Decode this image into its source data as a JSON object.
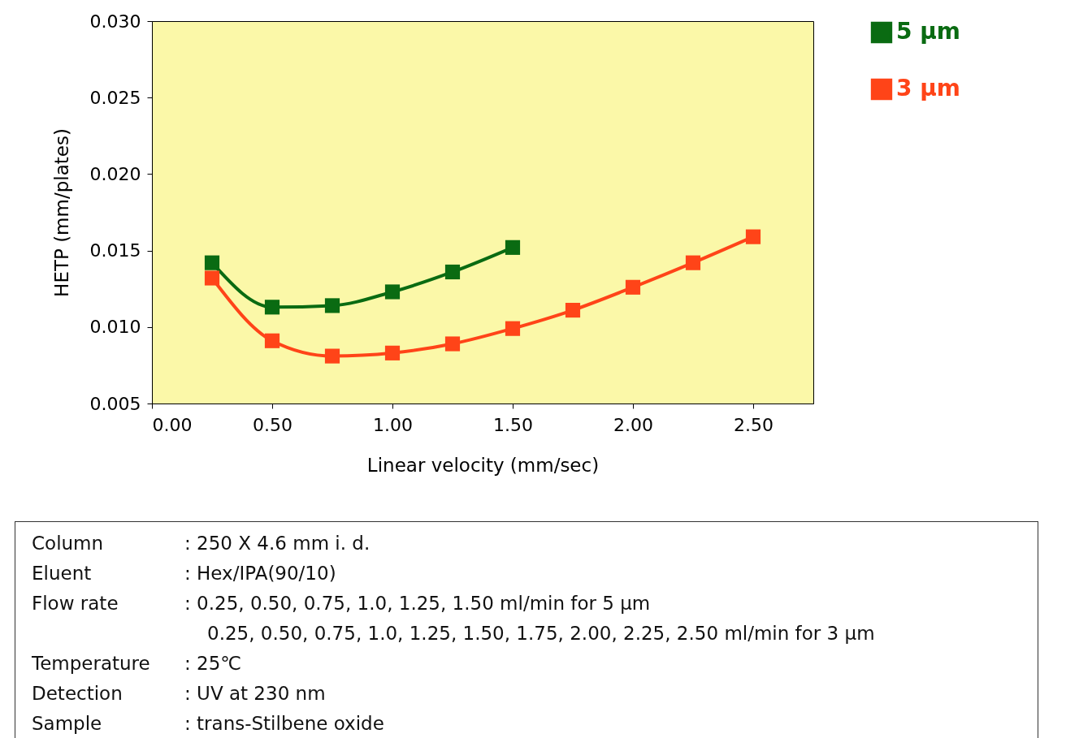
{
  "chart_data": {
    "type": "line",
    "xlabel": "Linear velocity (mm/sec)",
    "ylabel": "HETP (mm/plates)",
    "xlim": [
      0,
      2.75
    ],
    "xticks": [
      {
        "value": 0,
        "label": "0.00"
      },
      {
        "value": 0.5,
        "label": "0.50"
      },
      {
        "value": 1,
        "label": "1.00"
      },
      {
        "value": 1.5,
        "label": "1.50"
      },
      {
        "value": 2,
        "label": "2.00"
      },
      {
        "value": 2.5,
        "label": "2.50"
      }
    ],
    "ylim": [
      0.005,
      0.03
    ],
    "yticks": [
      0.005,
      {
        "value": 0.01,
        "label": "0.010"
      },
      0.015,
      {
        "value": 0.02,
        "label": "0.020"
      },
      0.025,
      {
        "value": 0.03,
        "label": "0.030"
      }
    ],
    "grid": false,
    "legend": "right",
    "marker": "square",
    "line_style": "solid",
    "series": [
      {
        "name": "5 µm",
        "color": "#0a6b12",
        "x": [
          0.25,
          0.5,
          0.75,
          1.0,
          1.25,
          1.5
        ],
        "values": [
          0.0142,
          0.0113,
          0.0114,
          0.0123,
          0.0136,
          0.0152
        ]
      },
      {
        "name": "3 µm",
        "color": "#ff4418",
        "x": [
          0.25,
          0.5,
          0.75,
          1.0,
          1.25,
          1.5,
          1.75,
          2.0,
          2.25,
          2.5
        ],
        "values": [
          0.0132,
          0.0091,
          0.0081,
          0.0083,
          0.0089,
          0.0099,
          0.0111,
          0.0126,
          0.0142,
          0.0159
        ]
      }
    ],
    "annotations": [
      "Column : 250 X 4.6 mm i. d.",
      "Eluent : Hex/IPA(90/10)",
      "Flow rate : 0.25, 0.50, 0.75, 1.0, 1.25, 1.50 ml/min for 5 µm",
      "0.25, 0.50, 0.75, 1.0, 1.25, 1.50, 1.75, 2.00, 2.25, 2.50 ml/min for 3 µm",
      "Temperature : 25℃",
      "Detection : UV at 230 nm",
      "Sample : trans-Stilbene oxide"
    ]
  }
}
